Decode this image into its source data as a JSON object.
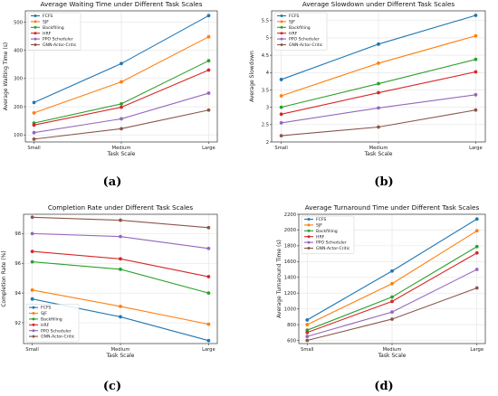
{
  "chart_data": [
    {
      "type": "line",
      "panel_label": "(a)",
      "title": "Average Waiting Time under Different Task Scales",
      "xlabel": "Task Scale",
      "ylabel": "Average Waiting Time (s)",
      "categories": [
        "Small",
        "Medium",
        "Large"
      ],
      "ylim": [
        75,
        540
      ],
      "yticks": [
        100,
        200,
        300,
        400,
        500
      ],
      "legend_position": "top-left",
      "grid": true,
      "series": [
        {
          "name": "FCFS",
          "color": "#1f77b4",
          "values": [
            215,
            353,
            523
          ]
        },
        {
          "name": "SJF",
          "color": "#ff7f0e",
          "values": [
            178,
            288,
            448
          ]
        },
        {
          "name": "Backfilling",
          "color": "#2ca02c",
          "values": [
            142,
            210,
            363
          ]
        },
        {
          "name": "HRF",
          "color": "#d62728",
          "values": [
            135,
            198,
            330
          ]
        },
        {
          "name": "PPO Scheduler",
          "color": "#9467bd",
          "values": [
            108,
            157,
            248
          ]
        },
        {
          "name": "GNN-Actor-Critic",
          "color": "#8c564b",
          "values": [
            85,
            122,
            188
          ]
        }
      ]
    },
    {
      "type": "line",
      "panel_label": "(b)",
      "title": "Average Slowdown under Different Task Scales",
      "xlabel": "Task Scale",
      "ylabel": "Average Slowdown",
      "categories": [
        "Small",
        "Medium",
        "Large"
      ],
      "ylim": [
        2.0,
        5.78
      ],
      "yticks": [
        2.0,
        2.5,
        3.0,
        3.5,
        4.0,
        4.5,
        5.0,
        5.5
      ],
      "legend_position": "top-left",
      "grid": true,
      "series": [
        {
          "name": "FCFS",
          "color": "#1f77b4",
          "values": [
            3.8,
            4.82,
            5.65
          ]
        },
        {
          "name": "SJF",
          "color": "#ff7f0e",
          "values": [
            3.33,
            4.27,
            5.06
          ]
        },
        {
          "name": "Backfilling",
          "color": "#2ca02c",
          "values": [
            3.0,
            3.68,
            4.38
          ]
        },
        {
          "name": "HRF",
          "color": "#d62728",
          "values": [
            2.8,
            3.42,
            4.02
          ]
        },
        {
          "name": "PPO Scheduler",
          "color": "#9467bd",
          "values": [
            2.55,
            2.98,
            3.36
          ]
        },
        {
          "name": "GNN-Actor-Critic",
          "color": "#8c564b",
          "values": [
            2.18,
            2.43,
            2.92
          ]
        }
      ]
    },
    {
      "type": "line",
      "panel_label": "(c)",
      "title": "Completion Rate under Different Task Scales",
      "xlabel": "Task Scale",
      "ylabel": "Completion Rate (%)",
      "categories": [
        "Small",
        "Medium",
        "Large"
      ],
      "ylim": [
        90.6,
        99.3
      ],
      "yticks": [
        92,
        94,
        96,
        98
      ],
      "legend_position": "bottom-left",
      "grid": true,
      "series": [
        {
          "name": "FCFS",
          "color": "#1f77b4",
          "values": [
            93.6,
            92.4,
            90.8
          ]
        },
        {
          "name": "SJF",
          "color": "#ff7f0e",
          "values": [
            94.2,
            93.1,
            91.9
          ]
        },
        {
          "name": "Backfilling",
          "color": "#2ca02c",
          "values": [
            96.1,
            95.6,
            94.0
          ]
        },
        {
          "name": "HRF",
          "color": "#d62728",
          "values": [
            96.8,
            96.3,
            95.1
          ]
        },
        {
          "name": "PPO Scheduler",
          "color": "#9467bd",
          "values": [
            98.0,
            97.8,
            97.0
          ]
        },
        {
          "name": "GNN-Actor-Critic",
          "color": "#8c564b",
          "values": [
            99.1,
            98.9,
            98.4
          ]
        }
      ]
    },
    {
      "type": "line",
      "panel_label": "(d)",
      "title": "Average Turnaround Time under Different Task Scales",
      "xlabel": "Task Scale",
      "ylabel": "Average Turnaround Time (s)",
      "categories": [
        "Small",
        "Medium",
        "Large"
      ],
      "ylim": [
        560,
        2200
      ],
      "yticks": [
        600,
        800,
        1000,
        1200,
        1400,
        1600,
        1800,
        2000,
        2200
      ],
      "legend_position": "top-left",
      "grid": true,
      "series": [
        {
          "name": "FCFS",
          "color": "#1f77b4",
          "values": [
            860,
            1480,
            2140
          ]
        },
        {
          "name": "SJF",
          "color": "#ff7f0e",
          "values": [
            800,
            1320,
            1990
          ]
        },
        {
          "name": "Backfilling",
          "color": "#2ca02c",
          "values": [
            730,
            1150,
            1790
          ]
        },
        {
          "name": "HRF",
          "color": "#d62728",
          "values": [
            700,
            1095,
            1710
          ]
        },
        {
          "name": "PPO Scheduler",
          "color": "#9467bd",
          "values": [
            650,
            960,
            1500
          ]
        },
        {
          "name": "GNN-Actor-Critic",
          "color": "#8c564b",
          "values": [
            600,
            870,
            1265
          ]
        }
      ]
    }
  ]
}
